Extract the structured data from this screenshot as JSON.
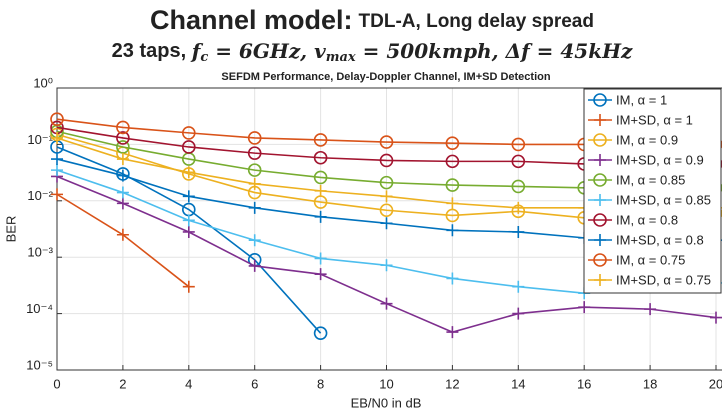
{
  "header": {
    "title": "Channel model:",
    "title_detail": "TDL-A, Long delay spread",
    "subtitle_parts": [
      "23 taps, ",
      "f",
      "c",
      " = 6GHz,  ",
      "v",
      "max",
      " = 500kmph, ",
      "Δf = 45kHz"
    ]
  },
  "chart_data": {
    "type": "line",
    "title": "SEFDM Performance, Delay-Doppler Channel, IM+SD Detection",
    "xlabel": "EB/N0 in dB",
    "ylabel": "BER",
    "x": [
      0,
      2,
      4,
      6,
      8,
      10,
      12,
      14,
      16,
      18,
      20
    ],
    "xlim": [
      0,
      20
    ],
    "xticks": [
      0,
      2,
      4,
      6,
      8,
      10,
      12,
      14,
      16,
      18,
      20
    ],
    "ylim": [
      1e-05,
      1
    ],
    "log_y": true,
    "grid": true,
    "legend": "upper right",
    "yticks": [
      {
        "value": 1e-05,
        "label": "10⁻⁵"
      },
      {
        "value": 0.0001,
        "label": "10⁻⁴"
      },
      {
        "value": 0.001,
        "label": "10⁻³"
      },
      {
        "value": 0.01,
        "label": "10⁻²"
      },
      {
        "value": 0.1,
        "label": "10⁻¹"
      },
      {
        "value": 1,
        "label": "10⁰"
      }
    ],
    "series": [
      {
        "name": "IM, α = 1",
        "color": "#0072bd",
        "marker": "o",
        "values": [
          0.09,
          0.03,
          0.007,
          0.0009,
          4.5e-05,
          null,
          null,
          null,
          null,
          null,
          null
        ]
      },
      {
        "name": "IM+SD, α = 1",
        "color": "#d95319",
        "marker": "+",
        "values": [
          0.013,
          0.0025,
          0.0003,
          null,
          null,
          null,
          null,
          null,
          null,
          null,
          null
        ]
      },
      {
        "name": "IM, α = 0.9",
        "color": "#edb120",
        "marker": "o",
        "values": [
          0.15,
          0.07,
          0.03,
          0.014,
          0.0095,
          0.0068,
          0.0055,
          0.0065,
          0.005,
          0.0055,
          0.006
        ]
      },
      {
        "name": "IM+SD, α = 0.9",
        "color": "#7e2f8e",
        "marker": "+",
        "values": [
          0.027,
          0.009,
          0.0028,
          0.0007,
          0.0005,
          0.00015,
          4.7e-05,
          0.0001,
          0.00013,
          0.00012,
          8.5e-05
        ]
      },
      {
        "name": "IM, α = 0.85",
        "color": "#77ac30",
        "marker": "o",
        "values": [
          0.17,
          0.09,
          0.055,
          0.035,
          0.026,
          0.021,
          0.019,
          0.018,
          0.017,
          0.017,
          0.017
        ]
      },
      {
        "name": "IM+SD, α = 0.85",
        "color": "#4dbeee",
        "marker": "+",
        "values": [
          0.035,
          0.014,
          0.0045,
          0.002,
          0.00095,
          0.00072,
          0.00042,
          0.0003,
          0.00023,
          0.0004,
          0.00035
        ]
      },
      {
        "name": "IM, α = 0.8",
        "color": "#a2142f",
        "marker": "o",
        "values": [
          0.2,
          0.13,
          0.09,
          0.07,
          0.058,
          0.052,
          0.05,
          0.05,
          0.045,
          0.045,
          0.045
        ]
      },
      {
        "name": "IM+SD, α = 0.8",
        "color": "#0072bd",
        "marker": "+",
        "values": [
          0.055,
          0.028,
          0.012,
          0.0075,
          0.0052,
          0.004,
          0.003,
          0.0028,
          0.0022,
          0.002,
          0.002
        ]
      },
      {
        "name": "IM, α = 0.75",
        "color": "#d95319",
        "marker": "o",
        "values": [
          0.28,
          0.2,
          0.16,
          0.13,
          0.12,
          0.11,
          0.105,
          0.1,
          0.1,
          0.1,
          0.1
        ]
      },
      {
        "name": "IM+SD, α = 0.75",
        "color": "#edb120",
        "marker": "+",
        "values": [
          0.13,
          0.055,
          0.032,
          0.02,
          0.015,
          0.012,
          0.009,
          0.0075,
          0.0075,
          0.0075,
          0.0075
        ]
      }
    ]
  }
}
